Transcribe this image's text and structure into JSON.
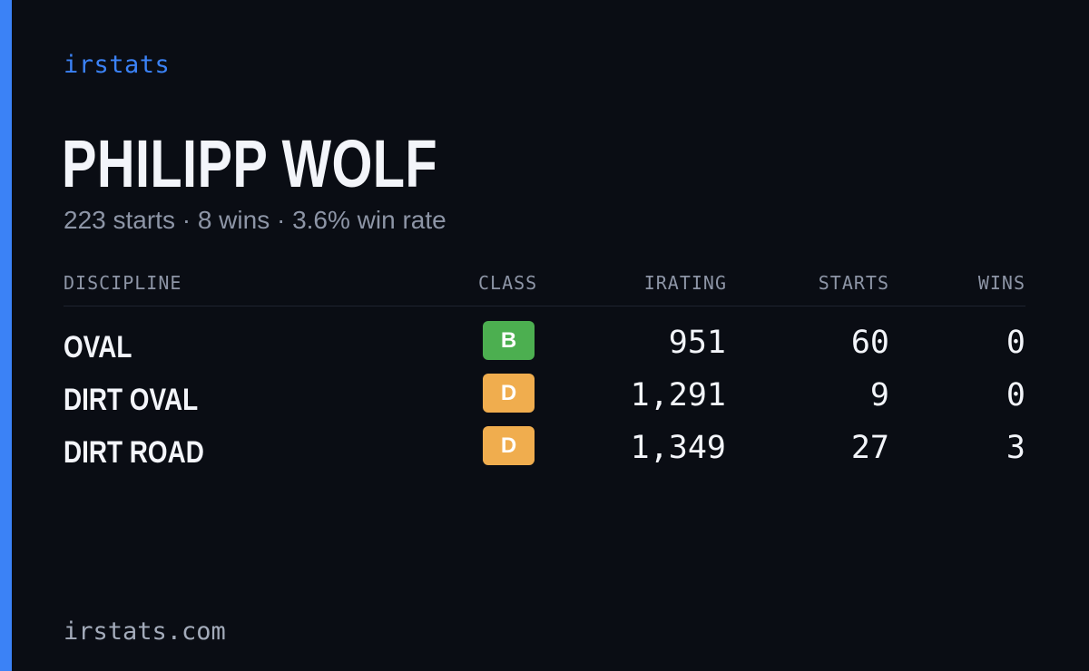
{
  "brand": "irstats",
  "driver": {
    "name": "PHILIPP WOLF",
    "summary": "223 starts · 8 wins · 3.6% win rate"
  },
  "table": {
    "headers": {
      "discipline": "DISCIPLINE",
      "class": "CLASS",
      "irating": "IRATING",
      "starts": "STARTS",
      "wins": "WINS"
    },
    "rows": [
      {
        "discipline": "OVAL",
        "class": "B",
        "class_color": "#4caf50",
        "irating": "951",
        "starts": "60",
        "wins": "0"
      },
      {
        "discipline": "DIRT OVAL",
        "class": "D",
        "class_color": "#f0ad4e",
        "irating": "1,291",
        "starts": "9",
        "wins": "0"
      },
      {
        "discipline": "DIRT ROAD",
        "class": "D",
        "class_color": "#f0ad4e",
        "irating": "1,349",
        "starts": "27",
        "wins": "3"
      }
    ]
  },
  "footer": "irstats.com",
  "colors": {
    "background": "#0a0d14",
    "accent": "#3b82f6",
    "text": "#f3f5fa",
    "muted": "#8d95a6"
  }
}
